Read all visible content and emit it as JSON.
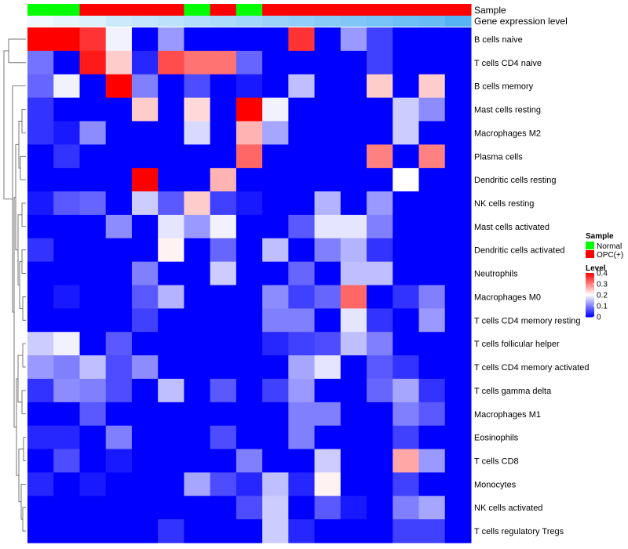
{
  "chart_data": {
    "type": "heatmap",
    "rows": [
      "B cells naive",
      "T cells CD4 naive",
      "B cells memory",
      "Mast cells resting",
      "Macrophages M2",
      "Plasma cells",
      "Dendritic cells resting",
      "NK cells resting",
      "Mast cells activated",
      "Dendritic cells activated",
      "Neutrophils",
      "Macrophages M0",
      "T cells CD4 memory resting",
      "T cells follicular helper",
      "T cells CD4 memory activated",
      "T cells gamma delta",
      "Macrophages M1",
      "Eosinophils",
      "T cells CD8",
      "Monocytes",
      "NK cells activated",
      "T cells regulatory  Tregs"
    ],
    "sample_groups": [
      "Normal",
      "Normal",
      "OPC(+)",
      "OPC(+)",
      "OPC(+)",
      "OPC(+)",
      "Normal",
      "OPC(+)",
      "Normal",
      "OPC(+)",
      "OPC(+)",
      "OPC(+)",
      "OPC(+)",
      "OPC(+)",
      "OPC(+)",
      "OPC(+)",
      "OPC(+)"
    ],
    "gene_expression_level": [
      0.1,
      0.15,
      0.2,
      0.3,
      0.35,
      0.4,
      0.45,
      0.5,
      0.55,
      0.6,
      0.65,
      0.7,
      0.75,
      0.8,
      0.85,
      0.9,
      1.0
    ],
    "values": [
      [
        0.4,
        0.4,
        0.36,
        0.19,
        0.0,
        0.12,
        0.0,
        0.0,
        0.0,
        0.0,
        0.36,
        0.0,
        0.12,
        0.05,
        0.0,
        0.0,
        0.0
      ],
      [
        0.09,
        0.0,
        0.38,
        0.24,
        0.03,
        0.34,
        0.31,
        0.31,
        0.08,
        0.0,
        0.0,
        0.0,
        0.0,
        0.05,
        0.0,
        0.0,
        0.0
      ],
      [
        0.08,
        0.19,
        0.0,
        0.4,
        0.1,
        0.0,
        0.06,
        0.0,
        0.02,
        0.0,
        0.15,
        0.0,
        0.0,
        0.24,
        0.0,
        0.24,
        0.0
      ],
      [
        0.04,
        0.0,
        0.0,
        0.0,
        0.24,
        0.0,
        0.23,
        0.0,
        0.4,
        0.19,
        0.0,
        0.0,
        0.0,
        0.0,
        0.16,
        0.11,
        0.0
      ],
      [
        0.04,
        0.02,
        0.11,
        0.0,
        0.0,
        0.0,
        0.17,
        0.0,
        0.26,
        0.13,
        0.0,
        0.0,
        0.0,
        0.0,
        0.16,
        0.0,
        0.0
      ],
      [
        0.0,
        0.04,
        0.0,
        0.0,
        0.0,
        0.0,
        0.0,
        0.0,
        0.32,
        0.0,
        0.0,
        0.0,
        0.0,
        0.3,
        0.0,
        0.3,
        0.0
      ],
      [
        0.0,
        0.0,
        0.0,
        0.0,
        0.4,
        0.0,
        0.0,
        0.26,
        0.0,
        0.0,
        0.0,
        0.0,
        0.0,
        0.0,
        0.2,
        0.0,
        0.0
      ],
      [
        0.02,
        0.07,
        0.08,
        0.0,
        0.16,
        0.07,
        0.24,
        0.05,
        0.02,
        0.0,
        0.0,
        0.14,
        0.0,
        0.12,
        0.0,
        0.0,
        0.0
      ],
      [
        0.0,
        0.0,
        0.0,
        0.11,
        0.0,
        0.18,
        0.12,
        0.19,
        0.0,
        0.0,
        0.07,
        0.18,
        0.18,
        0.1,
        0.0,
        0.0,
        0.0
      ],
      [
        0.04,
        0.0,
        0.0,
        0.0,
        0.0,
        0.21,
        0.0,
        0.08,
        0.0,
        0.15,
        0.0,
        0.1,
        0.14,
        0.04,
        0.0,
        0.0,
        0.0
      ],
      [
        0.0,
        0.0,
        0.0,
        0.0,
        0.1,
        0.0,
        0.0,
        0.16,
        0.0,
        0.0,
        0.08,
        0.0,
        0.15,
        0.15,
        0.0,
        0.0,
        0.0
      ],
      [
        0.0,
        0.02,
        0.0,
        0.0,
        0.07,
        0.14,
        0.0,
        0.0,
        0.0,
        0.11,
        0.05,
        0.08,
        0.32,
        0.0,
        0.04,
        0.1,
        0.0
      ],
      [
        0.0,
        0.0,
        0.0,
        0.0,
        0.05,
        0.0,
        0.0,
        0.0,
        0.0,
        0.1,
        0.1,
        0.0,
        0.18,
        0.04,
        0.0,
        0.12,
        0.0
      ],
      [
        0.16,
        0.19,
        0.0,
        0.07,
        0.0,
        0.0,
        0.0,
        0.0,
        0.0,
        0.03,
        0.05,
        0.06,
        0.15,
        0.1,
        0.0,
        0.0,
        0.0
      ],
      [
        0.12,
        0.1,
        0.15,
        0.06,
        0.11,
        0.0,
        0.0,
        0.0,
        0.0,
        0.0,
        0.13,
        0.18,
        0.0,
        0.07,
        0.04,
        0.0,
        0.0
      ],
      [
        0.04,
        0.11,
        0.1,
        0.06,
        0.0,
        0.15,
        0.0,
        0.07,
        0.0,
        0.05,
        0.12,
        0.0,
        0.0,
        0.08,
        0.13,
        0.04,
        0.0
      ],
      [
        0.0,
        0.0,
        0.07,
        0.0,
        0.0,
        0.0,
        0.0,
        0.0,
        0.0,
        0.0,
        0.1,
        0.1,
        0.0,
        0.0,
        0.1,
        0.07,
        0.0
      ],
      [
        0.03,
        0.03,
        0.0,
        0.1,
        0.0,
        0.0,
        0.0,
        0.06,
        0.0,
        0.0,
        0.1,
        0.0,
        0.0,
        0.0,
        0.05,
        0.0,
        0.0
      ],
      [
        0.0,
        0.06,
        0.0,
        0.02,
        0.0,
        0.0,
        0.0,
        0.0,
        0.1,
        0.0,
        0.0,
        0.16,
        0.0,
        0.0,
        0.27,
        0.12,
        0.0
      ],
      [
        0.03,
        0.0,
        0.02,
        0.0,
        0.0,
        0.0,
        0.13,
        0.06,
        0.03,
        0.15,
        0.03,
        0.21,
        0.0,
        0.0,
        0.05,
        0.0,
        0.0
      ],
      [
        0.0,
        0.0,
        0.0,
        0.0,
        0.0,
        0.0,
        0.0,
        0.0,
        0.06,
        0.16,
        0.0,
        0.07,
        0.02,
        0.0,
        0.1,
        0.13,
        0.0
      ],
      [
        0.0,
        0.0,
        0.0,
        0.0,
        0.0,
        0.04,
        0.0,
        0.0,
        0.0,
        0.16,
        0.03,
        0.0,
        0.0,
        0.0,
        0.05,
        0.05,
        0.0
      ]
    ],
    "color_scale": {
      "min": 0,
      "mid": 0.2,
      "max": 0.4,
      "low": "#0000FF",
      "midColor": "#FFFFFF",
      "high": "#FF0000"
    },
    "annotation_colors": {
      "Normal": "#00FF00",
      "OPC(+)": "#FF0000",
      "gel_low": "#FFFFFF",
      "gel_high": "#56B4F5"
    },
    "annotation_labels": {
      "sample": "Sample",
      "gene_expression": "Gene expression level"
    },
    "legend": {
      "placement": "right",
      "sample_title": "Sample",
      "sample_entries": [
        "Normal",
        "OPC(+)"
      ],
      "level_title": "Level",
      "level_ticks": [
        0.4,
        0.3,
        0.2,
        0.1,
        0
      ]
    }
  }
}
